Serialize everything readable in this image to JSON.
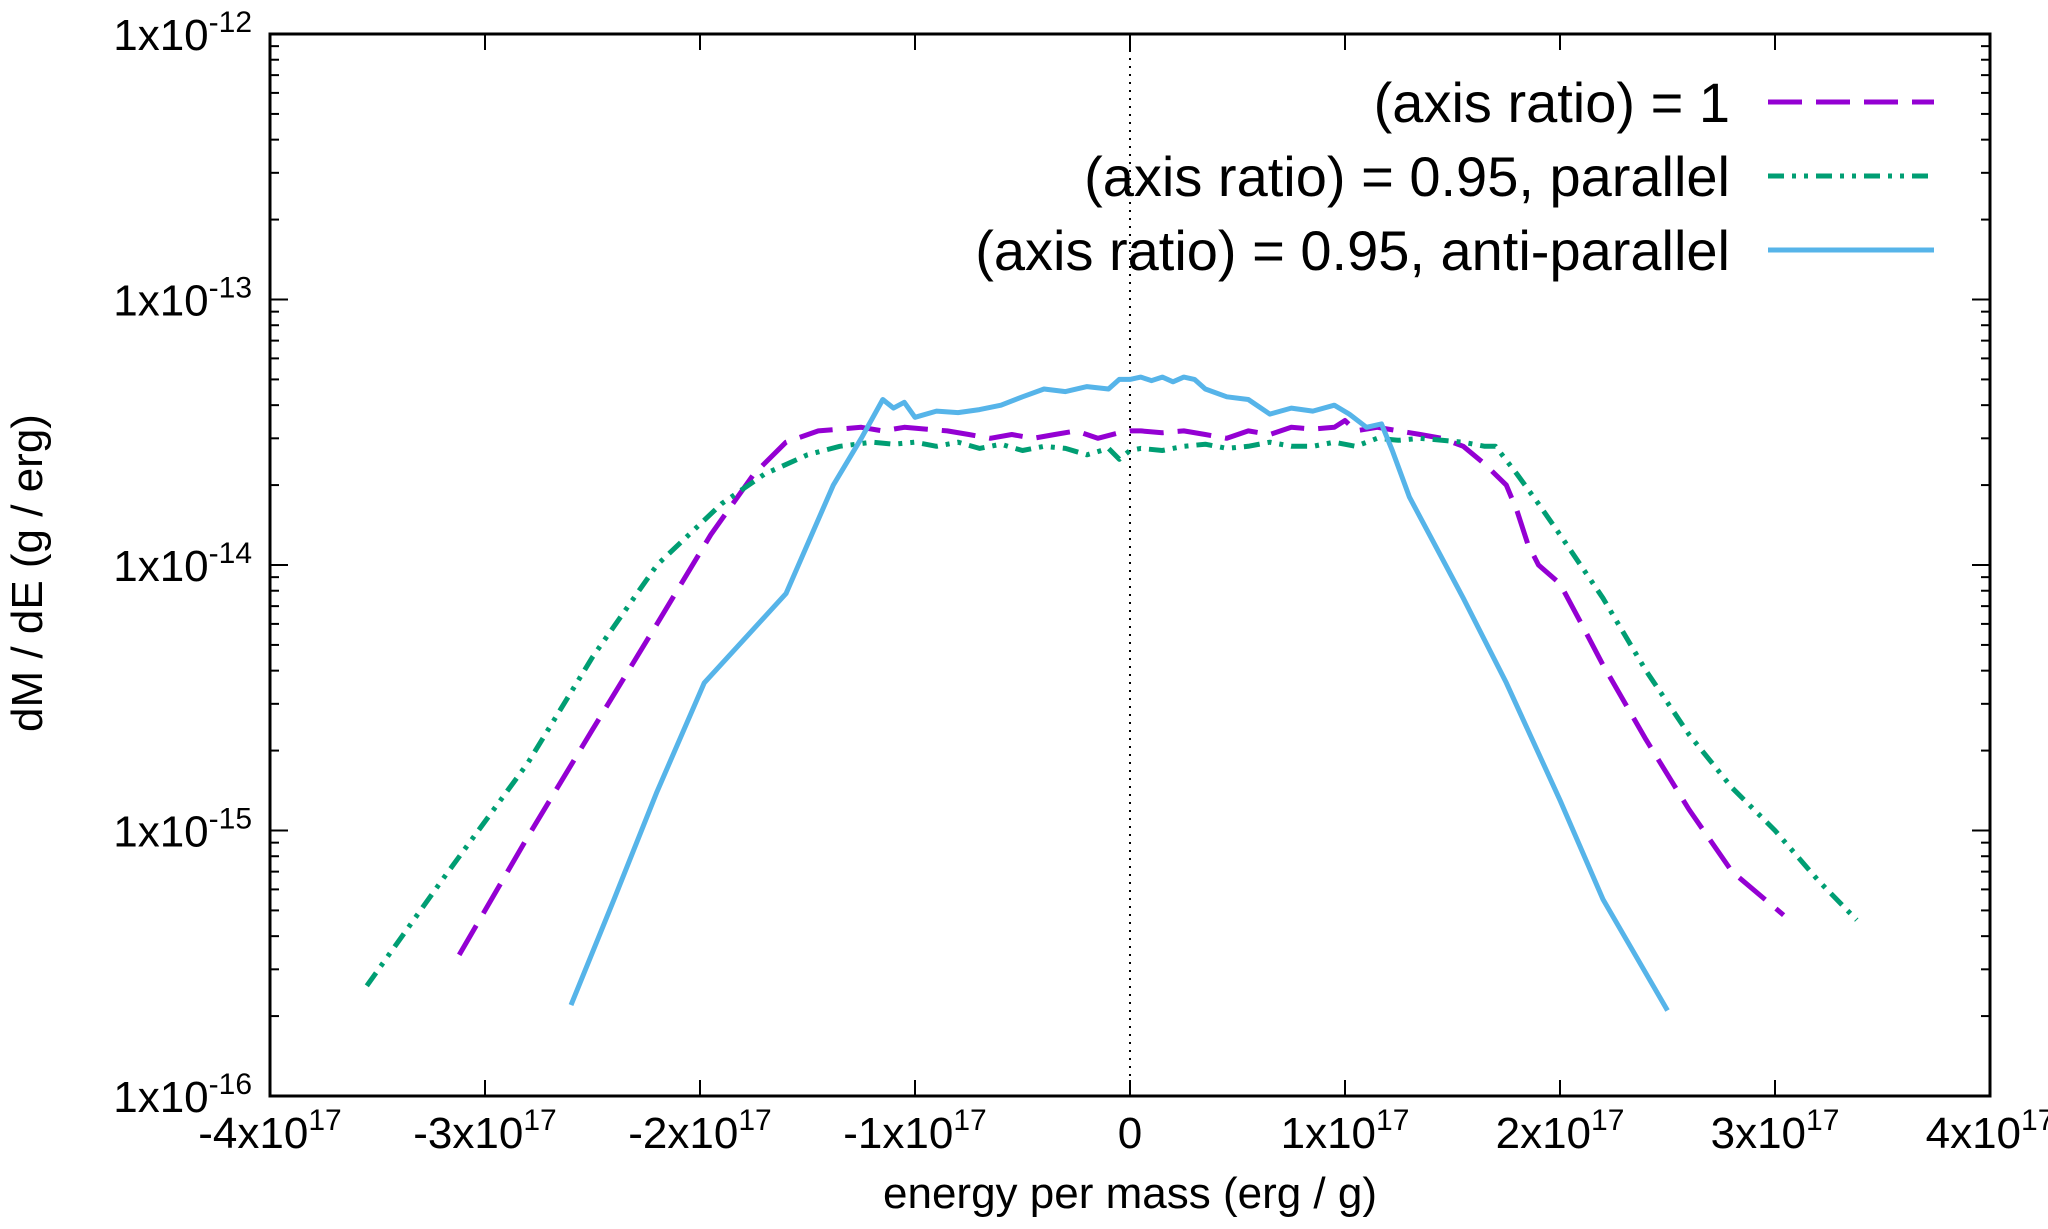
{
  "chart_data": {
    "type": "line",
    "title": "",
    "xlabel": "energy per mass (erg / g)",
    "ylabel": "dM / dE (g / erg)",
    "xlim": [
      -4e+17,
      4e+17
    ],
    "ylim": [
      1e-16,
      1e-12
    ],
    "yscale": "log",
    "x_ticks": [
      {
        "value": -4e+17,
        "mant": "-4x10",
        "exp": "17"
      },
      {
        "value": -3e+17,
        "mant": "-3x10",
        "exp": "17"
      },
      {
        "value": -2e+17,
        "mant": "-2x10",
        "exp": "17"
      },
      {
        "value": -1e+17,
        "mant": "-1x10",
        "exp": "17"
      },
      {
        "value": 0,
        "mant": "0",
        "exp": ""
      },
      {
        "value": 1e+17,
        "mant": "1x10",
        "exp": "17"
      },
      {
        "value": 2e+17,
        "mant": "2x10",
        "exp": "17"
      },
      {
        "value": 3e+17,
        "mant": "3x10",
        "exp": "17"
      },
      {
        "value": 4e+17,
        "mant": "4x10",
        "exp": "17"
      }
    ],
    "y_ticks": [
      {
        "value": 1e-16,
        "mant": "1x10",
        "exp": "-16"
      },
      {
        "value": 1e-15,
        "mant": "1x10",
        "exp": "-15"
      },
      {
        "value": 1e-14,
        "mant": "1x10",
        "exp": "-14"
      },
      {
        "value": 1e-13,
        "mant": "1x10",
        "exp": "-13"
      },
      {
        "value": 1e-12,
        "mant": "1x10",
        "exp": "-12"
      }
    ],
    "reference_line": {
      "x": 0,
      "style": "dotted"
    },
    "legend_position": "top-right",
    "series": [
      {
        "name": "(axis ratio) = 1",
        "color": "#9400D3",
        "dash": "dashed",
        "x": [
          -3.12e+17,
          -2.8e+17,
          -2.5e+17,
          -2.2e+17,
          -1.95e+17,
          -1.75e+17,
          -1.6e+17,
          -1.45e+17,
          -1.35e+17,
          -1.25e+17,
          -1.15e+17,
          -1.05e+17,
          -9.5e+16,
          -8.5e+16,
          -7.5e+16,
          -6.5e+16,
          -5.5e+16,
          -4.5e+16,
          -3.5e+16,
          -2.5e+16,
          -1.5e+16,
          -5000000000000000.0,
          0,
          5000000000000000.0,
          1.5e+16,
          2.5e+16,
          3.5e+16,
          4.5e+16,
          5.5e+16,
          6.5e+16,
          7.5e+16,
          8.5e+16,
          9.5e+16,
          1e+17,
          1.05e+17,
          1.15e+17,
          1.25e+17,
          1.35e+17,
          1.45e+17,
          1.55e+17,
          1.65e+17,
          1.75e+17,
          1.8e+17,
          1.85e+17,
          1.9e+17,
          2e+17,
          2.1e+17,
          2.2e+17,
          2.4e+17,
          2.6e+17,
          2.8e+17,
          3.04e+17
        ],
        "y": [
          3.4e-16,
          9.5e-16,
          2.4e-15,
          6e-15,
          1.3e-14,
          2.2e-14,
          2.9e-14,
          3.2e-14,
          3.25e-14,
          3.3e-14,
          3.2e-14,
          3.3e-14,
          3.25e-14,
          3.2e-14,
          3.1e-14,
          3e-14,
          3.1e-14,
          3e-14,
          3.1e-14,
          3.2e-14,
          3e-14,
          3.15e-14,
          3.2e-14,
          3.2e-14,
          3.15e-14,
          3.2e-14,
          3.1e-14,
          3e-14,
          3.2e-14,
          3.1e-14,
          3.3e-14,
          3.25e-14,
          3.3e-14,
          3.5e-14,
          3.2e-14,
          3.3e-14,
          3.2e-14,
          3.1e-14,
          3e-14,
          2.8e-14,
          2.4e-14,
          2e-14,
          1.6e-14,
          1.2e-14,
          1e-14,
          8.5e-15,
          6e-15,
          4.2e-15,
          2.2e-15,
          1.2e-15,
          7e-16,
          4.8e-16
        ]
      },
      {
        "name": "(axis ratio) = 0.95, parallel",
        "color": "#009E73",
        "dash": "dash-dot-dot",
        "x": [
          -3.55e+17,
          -3.2e+17,
          -2.8e+17,
          -2.5e+17,
          -2.2e+17,
          -1.9e+17,
          -1.7e+17,
          -1.5e+17,
          -1.35e+17,
          -1.2e+17,
          -1.1e+17,
          -1e+17,
          -9e+16,
          -8e+16,
          -7e+16,
          -6e+16,
          -5e+16,
          -4e+16,
          -3e+16,
          -2e+16,
          -1e+16,
          -5000000000000000.0,
          0,
          5000000000000000.0,
          1.5e+16,
          2.5e+16,
          3.5e+16,
          4.5e+16,
          5.5e+16,
          6.5e+16,
          7.5e+16,
          8.5e+16,
          9.5e+16,
          1.05e+17,
          1.15e+17,
          1.25e+17,
          1.35e+17,
          1.45e+17,
          1.55e+17,
          1.65e+17,
          1.7e+17,
          1.8e+17,
          1.9e+17,
          2e+17,
          2.2e+17,
          2.4e+17,
          2.6e+17,
          2.8e+17,
          3e+17,
          3.2e+17,
          3.38e+17
        ],
        "y": [
          2.6e-16,
          6.5e-16,
          1.8e-15,
          4.5e-15,
          1e-14,
          1.7e-14,
          2.2e-14,
          2.6e-14,
          2.8e-14,
          2.9e-14,
          2.85e-14,
          2.9e-14,
          2.8e-14,
          2.9e-14,
          2.75e-14,
          2.85e-14,
          2.7e-14,
          2.8e-14,
          2.75e-14,
          2.6e-14,
          2.75e-14,
          2.5e-14,
          2.7e-14,
          2.75e-14,
          2.7e-14,
          2.8e-14,
          2.85e-14,
          2.75e-14,
          2.8e-14,
          2.9e-14,
          2.8e-14,
          2.8e-14,
          2.9e-14,
          2.8e-14,
          3e-14,
          2.95e-14,
          3e-14,
          2.95e-14,
          2.9e-14,
          2.8e-14,
          2.8e-14,
          2.2e-14,
          1.7e-14,
          1.3e-14,
          7.5e-15,
          4e-15,
          2.3e-15,
          1.45e-15,
          1e-15,
          6.5e-16,
          4.6e-16
        ]
      },
      {
        "name": "(axis ratio) = 0.95, anti-parallel",
        "color": "#56B4E9",
        "dash": "solid",
        "x": [
          -2.6e+17,
          -2.4e+17,
          -2.2e+17,
          -1.98e+17,
          -1.6e+17,
          -1.38e+17,
          -1.25e+17,
          -1.15e+17,
          -1.1e+17,
          -1.05e+17,
          -1e+17,
          -9e+16,
          -8e+16,
          -7e+16,
          -6e+16,
          -5e+16,
          -4e+16,
          -3e+16,
          -2e+16,
          -1e+16,
          -5000000000000000.0,
          0,
          5000000000000000.0,
          1e+16,
          1.5e+16,
          2e+16,
          2.5e+16,
          3e+16,
          3.5e+16,
          4.5e+16,
          5.5e+16,
          6.5e+16,
          7.5e+16,
          8.5e+16,
          9.5e+16,
          1.02e+17,
          1.1e+17,
          1.17e+17,
          1.22e+17,
          1.3e+17,
          1.55e+17,
          1.75e+17,
          2e+17,
          2.2e+17,
          2.5e+17
        ],
        "y": [
          2.2e-16,
          5.5e-16,
          1.4e-15,
          3.6e-15,
          7.8e-15,
          2e-14,
          3e-14,
          4.2e-14,
          3.9e-14,
          4.1e-14,
          3.6e-14,
          3.8e-14,
          3.75e-14,
          3.85e-14,
          4e-14,
          4.3e-14,
          4.6e-14,
          4.5e-14,
          4.7e-14,
          4.6e-14,
          5e-14,
          5e-14,
          5.1e-14,
          4.95e-14,
          5.1e-14,
          4.9e-14,
          5.1e-14,
          5e-14,
          4.6e-14,
          4.3e-14,
          4.2e-14,
          3.7e-14,
          3.9e-14,
          3.8e-14,
          4e-14,
          3.7e-14,
          3.3e-14,
          3.4e-14,
          2.7e-14,
          1.8e-14,
          7.5e-15,
          3.6e-15,
          1.3e-15,
          5.5e-16,
          2.1e-16
        ]
      }
    ]
  }
}
